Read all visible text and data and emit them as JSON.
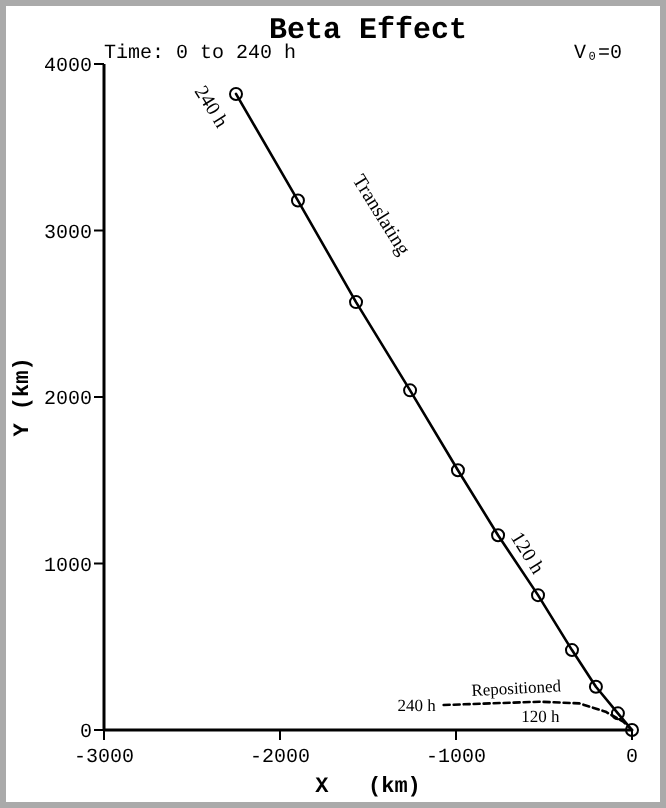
{
  "chart_data": {
    "type": "line",
    "title": "Beta Effect",
    "xlabel": "X   (km)",
    "ylabel": "Y (km)",
    "xlim": [
      -3000,
      0
    ],
    "ylim": [
      0,
      4000
    ],
    "xticks": [
      -3000,
      -2000,
      -1000,
      0
    ],
    "yticks": [
      0,
      1000,
      2000,
      3000,
      4000
    ],
    "grid": false,
    "series": [
      {
        "name": "Translating",
        "color": "#000000",
        "marker": "circle",
        "line_style": "solid",
        "x": [
          -2250,
          -1898,
          -1568,
          -1261,
          -989,
          -761,
          -534,
          -341,
          -205,
          -80,
          0
        ],
        "values": [
          3820,
          3180,
          2570,
          2040,
          1560,
          1170,
          810,
          480,
          260,
          100,
          0
        ]
      },
      {
        "name": "Repositioned",
        "color": "#000000",
        "marker": "none",
        "line_style": "dashed",
        "x": [
          -1070,
          -800,
          -520,
          -300,
          -150,
          -50,
          0
        ],
        "values": [
          150,
          160,
          170,
          160,
          110,
          50,
          0
        ]
      }
    ],
    "annotations": [
      "Time: 0 to 240 h",
      "V₀=0",
      {
        "text": "240 h",
        "x": -2250,
        "y": 3820
      },
      {
        "text": "120 h",
        "x": -761,
        "y": 1165
      },
      {
        "text": "240 h",
        "x": -1070,
        "y": 150
      },
      {
        "text": "120 h",
        "x": -520,
        "y": 170
      }
    ]
  }
}
